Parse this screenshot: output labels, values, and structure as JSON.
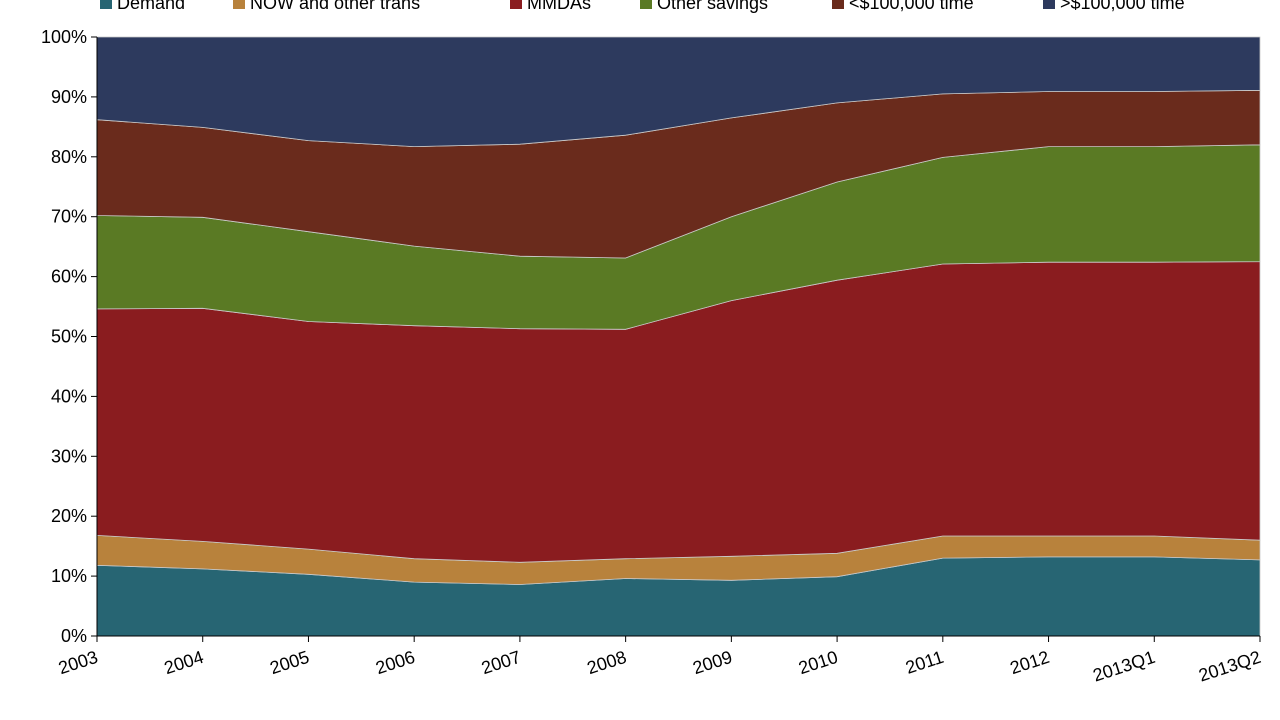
{
  "chart_data": {
    "type": "area",
    "stacked": true,
    "percent": true,
    "categories": [
      "2003",
      "2004",
      "2005",
      "2006",
      "2007",
      "2008",
      "2009",
      "2010",
      "2011",
      "2012",
      "2013Q1",
      "2013Q2"
    ],
    "series": [
      {
        "name": "Demand",
        "color": "#276573",
        "values": [
          11.8,
          11.2,
          10.3,
          9.0,
          8.6,
          9.6,
          9.3,
          9.9,
          13.0,
          13.2,
          13.2,
          12.7
        ]
      },
      {
        "name": "NOW and other trans",
        "color": "#b8823c",
        "values": [
          5.0,
          4.6,
          4.2,
          3.9,
          3.7,
          3.3,
          4.0,
          3.9,
          3.7,
          3.5,
          3.5,
          3.3
        ]
      },
      {
        "name": "MMDAs",
        "color": "#8a1c1f",
        "values": [
          37.8,
          38.9,
          38.0,
          38.9,
          39.0,
          38.3,
          42.7,
          45.6,
          45.4,
          45.7,
          45.7,
          46.5
        ]
      },
      {
        "name": "Other savings",
        "color": "#5a7a24",
        "values": [
          15.6,
          15.2,
          15.0,
          13.3,
          12.1,
          11.9,
          14.0,
          16.4,
          17.8,
          19.3,
          19.3,
          19.5
        ]
      },
      {
        "name": "<$100,000 time",
        "color": "#6a2b1c",
        "values": [
          16.0,
          15.0,
          15.2,
          16.6,
          18.7,
          20.5,
          16.5,
          13.2,
          10.6,
          9.2,
          9.2,
          9.1
        ]
      },
      {
        "name": ">$100,000 time",
        "color": "#2d3a5e",
        "values": [
          13.8,
          15.1,
          17.3,
          18.3,
          17.9,
          16.4,
          13.5,
          11.0,
          9.5,
          9.1,
          9.1,
          8.9
        ]
      }
    ],
    "yticks": [
      "0%",
      "10%",
      "20%",
      "30%",
      "40%",
      "50%",
      "60%",
      "70%",
      "80%",
      "90%",
      "100%"
    ],
    "ylim": [
      0,
      100
    ],
    "legend_position": "top",
    "grid": false
  }
}
